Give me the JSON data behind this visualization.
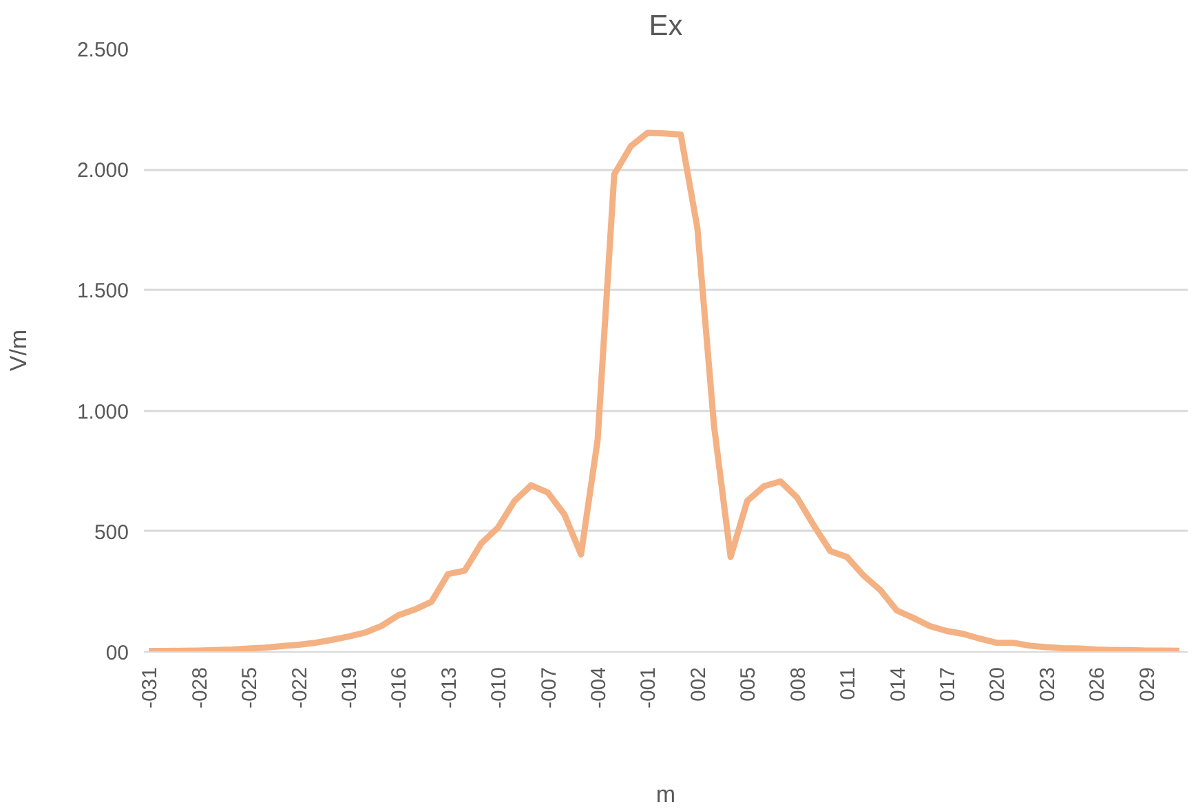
{
  "chart_data": {
    "type": "line",
    "title": "Ex",
    "xlabel": "m",
    "ylabel": "V/m",
    "categories": [
      "-031",
      null,
      null,
      "-028",
      null,
      null,
      "-025",
      null,
      null,
      "-022",
      null,
      null,
      "-019",
      null,
      null,
      "-016",
      null,
      null,
      "-013",
      null,
      null,
      "-010",
      null,
      null,
      "-007",
      null,
      null,
      "-004",
      null,
      null,
      "-001",
      null,
      null,
      "002",
      null,
      null,
      "005",
      null,
      null,
      "008",
      null,
      null,
      "011",
      null,
      null,
      "014",
      null,
      null,
      "017",
      null,
      null,
      "020",
      null,
      null,
      "023",
      null,
      null,
      "026",
      null,
      null,
      "029",
      null,
      null
    ],
    "series": [
      {
        "color": "#f4b183",
        "values": [
          4,
          4,
          5,
          6,
          8,
          10,
          14,
          18,
          24,
          30,
          38,
          50,
          64,
          80,
          108,
          152,
          176,
          208,
          323,
          337,
          450,
          515,
          626,
          691,
          661,
          570,
          404,
          879,
          1980,
          2097,
          2152,
          2150,
          2145,
          1758,
          939,
          394,
          626,
          687,
          707,
          640,
          525,
          418,
          394,
          317,
          257,
          172,
          141,
          107,
          87,
          75,
          55,
          38,
          38,
          26,
          20,
          16,
          14,
          10,
          8,
          8,
          6,
          6,
          5
        ]
      }
    ],
    "ylim": [
      0,
      2500
    ],
    "yticks": [
      {
        "value": 0,
        "label": "00"
      },
      500,
      {
        "value": 1000,
        "label": "1.000"
      },
      {
        "value": 1500,
        "label": "1.500"
      },
      {
        "value": 2000,
        "label": "2.000"
      },
      {
        "value": 2500,
        "label": "2.500"
      }
    ],
    "grid": "y",
    "marker": "none",
    "line_style": "solid"
  }
}
